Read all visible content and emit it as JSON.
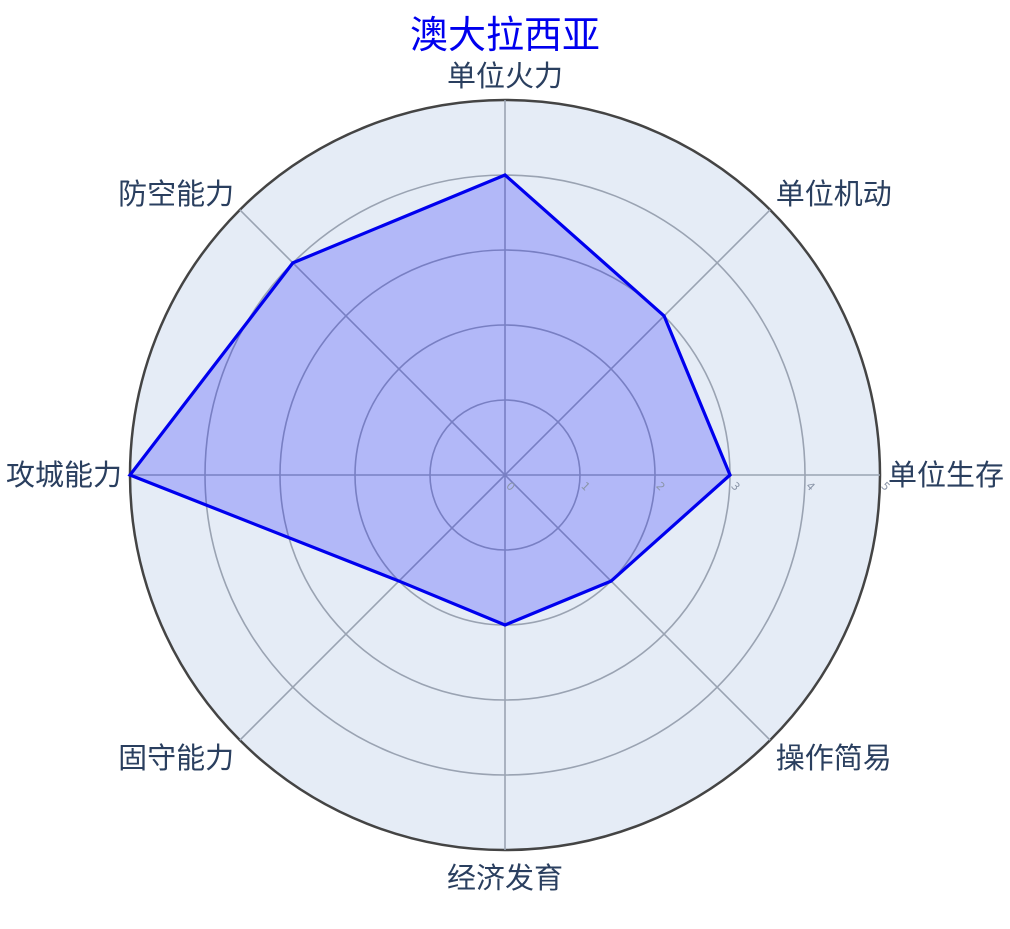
{
  "chart_data": {
    "type": "radar",
    "title": "澳大拉西亚",
    "axes": [
      "单位生存",
      "单位机动",
      "单位火力",
      "防空能力",
      "攻城能力",
      "固守能力",
      "经济发育",
      "操作简易"
    ],
    "series": [
      {
        "values": [
          3,
          3,
          4,
          4,
          5,
          2,
          2,
          2
        ]
      }
    ],
    "radial_range": [
      0,
      5
    ],
    "radial_ticks": [
      "0",
      "1",
      "2",
      "3",
      "4",
      "5"
    ],
    "grid": true,
    "colors": {
      "series": "#0000ee",
      "background": "#e5ecf6",
      "title": "#0000ee",
      "labels": "#2a3f5f"
    }
  }
}
